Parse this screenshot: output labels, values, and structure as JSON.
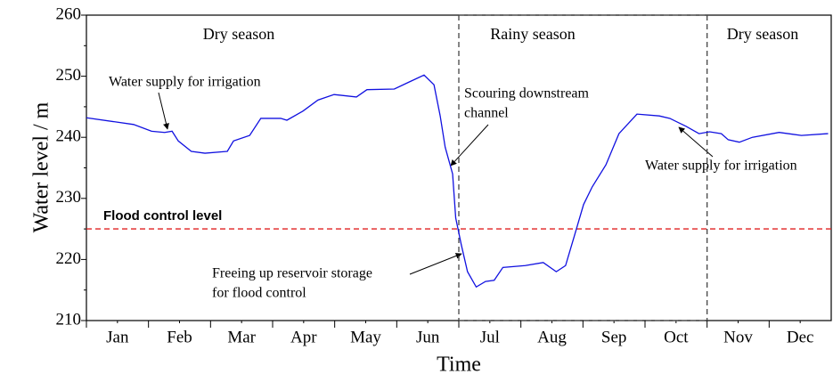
{
  "chart_data": {
    "type": "line",
    "ylabel": "Water level / m",
    "xlabel": "Time",
    "color": "#1010e0",
    "xlim": [
      0,
      12
    ],
    "ylim": [
      210,
      260
    ],
    "yticks": [
      210,
      220,
      230,
      240,
      250,
      260
    ],
    "xticks": [
      {
        "value": 0.5,
        "label": "Jan"
      },
      {
        "value": 1.5,
        "label": "Feb"
      },
      {
        "value": 2.5,
        "label": "Mar"
      },
      {
        "value": 3.5,
        "label": "Apr"
      },
      {
        "value": 4.5,
        "label": "May"
      },
      {
        "value": 5.5,
        "label": "Jun"
      },
      {
        "value": 6.5,
        "label": "Jul"
      },
      {
        "value": 7.5,
        "label": "Aug"
      },
      {
        "value": 8.5,
        "label": "Sep"
      },
      {
        "value": 9.5,
        "label": "Oct"
      },
      {
        "value": 10.5,
        "label": "Nov"
      },
      {
        "value": 11.5,
        "label": "Dec"
      }
    ],
    "x": [
      0,
      0.76,
      1.05,
      1.26,
      1.38,
      1.48,
      1.69,
      1.91,
      2.27,
      2.37,
      2.63,
      2.81,
      3.13,
      3.23,
      3.49,
      3.73,
      3.99,
      4.35,
      4.52,
      4.96,
      5.21,
      5.44,
      5.6,
      5.7,
      5.78,
      5.9,
      5.95,
      6.04,
      6.14,
      6.28,
      6.43,
      6.57,
      6.71,
      7.07,
      7.36,
      7.57,
      7.72,
      7.86,
      8.01,
      8.15,
      8.37,
      8.58,
      8.87,
      9.23,
      9.4,
      9.66,
      9.87,
      10.04,
      10.23,
      10.34,
      10.52,
      10.73,
      11.16,
      11.52,
      11.95
    ],
    "values": [
      243.2,
      242.1,
      241,
      240.8,
      241,
      239.4,
      237.7,
      237.4,
      237.7,
      239.4,
      240.3,
      243.1,
      243.1,
      242.8,
      244.3,
      246.1,
      247,
      246.6,
      247.8,
      247.9,
      249.1,
      250.2,
      248.6,
      243.5,
      238.4,
      234,
      226.8,
      222.4,
      218,
      215.5,
      216.4,
      216.6,
      218.7,
      219,
      219.5,
      218,
      219,
      223.8,
      229,
      231.9,
      235.5,
      240.6,
      243.8,
      243.5,
      243.1,
      241.8,
      240.6,
      240.9,
      240.6,
      239.6,
      239.2,
      240,
      240.8,
      240.3,
      240.6
    ],
    "flood_control": {
      "label": "Flood control level",
      "value": 225,
      "color": "#e02020"
    },
    "seasons": [
      {
        "label": "Dry season"
      },
      {
        "label": "Rainy season",
        "start": 6,
        "end": 10
      },
      {
        "label": "Dry season"
      }
    ],
    "annotations": [
      {
        "lines": [
          "Water supply for irrigation"
        ]
      },
      {
        "lines": [
          "Scouring downstream",
          "channel"
        ]
      },
      {
        "lines": [
          "Freeing up reservoir storage",
          "for flood control"
        ]
      },
      {
        "lines": [
          "Water supply for irrigation"
        ]
      }
    ]
  }
}
